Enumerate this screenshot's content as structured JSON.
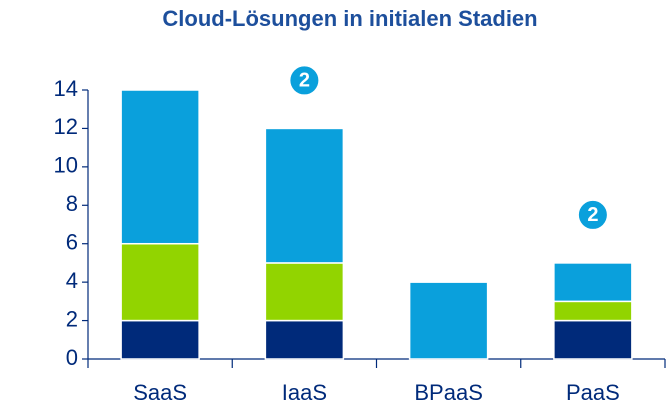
{
  "chart_data": {
    "type": "stacked_bar",
    "title": "Cloud-Lösungen in initialen Stadien",
    "categories": [
      "SaaS",
      "IaaS",
      "BPaaS",
      "PaaS"
    ],
    "series": [
      {
        "color": "#002a7a",
        "values": [
          2,
          2,
          0,
          2
        ]
      },
      {
        "color": "#92d400",
        "values": [
          4,
          3,
          0,
          1
        ]
      },
      {
        "color": "#0aa0dc",
        "values": [
          8,
          7,
          4,
          2
        ]
      }
    ],
    "annotations": [
      "2",
      "2"
    ],
    "ylim": [
      0,
      14
    ],
    "yticks": [
      0,
      2,
      4,
      6,
      8,
      10,
      12,
      14
    ],
    "grid": false
  }
}
